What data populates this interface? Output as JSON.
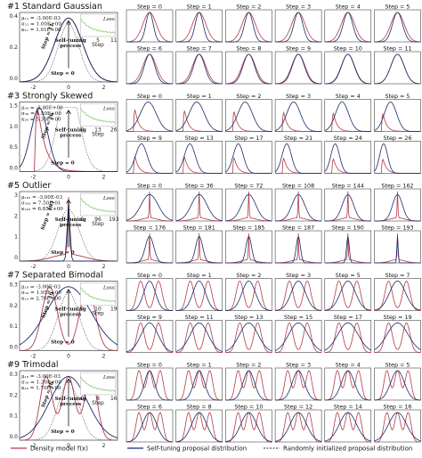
{
  "colors": {
    "density": "#b33b49",
    "selftuning": "#1b2a6b",
    "random": "#555555",
    "loss": "#8fd27a"
  },
  "legend": {
    "density": "Density model f(x)",
    "selftuning": "Self-tuning proposal distribution",
    "random": "Randomly initialized proposal distribution"
  },
  "chart_data": [
    {
      "type": "line",
      "title": "#1 Standard Gaussian",
      "mode": "gauss",
      "xticks": [
        "-2",
        "0",
        "2"
      ],
      "yticks": [
        "0.4",
        "0.2",
        "0.0"
      ],
      "loss_label": "Loss",
      "loss_xticks": [
        "0",
        "5",
        "11"
      ],
      "loss_xlabel": "Step",
      "stats": [
        "μ₁₁ = -3.00E-03",
        "σ₁₁ = 1.00E+00",
        "κ₁₁ = 1.01E+00"
      ],
      "step_start": "Step = 0",
      "step_end": "Step = 11",
      "process": [
        "Self-tuning",
        "process"
      ],
      "panels": [
        [
          "Step = 0",
          "Step = 1",
          "Step = 2",
          "Step = 3",
          "Step = 4",
          "Step = 5"
        ],
        [
          "Step = 6",
          "Step = 7",
          "Step = 8",
          "Step = 9",
          "Step = 10",
          "Step = 11"
        ]
      ]
    },
    {
      "type": "line",
      "title": "#3 Strongly Skewed",
      "mode": "skew",
      "xticks": [
        "-2",
        "0",
        "2"
      ],
      "yticks": [
        "1.5",
        "1.0",
        "0.5",
        "0.0"
      ],
      "loss_label": "Loss",
      "loss_xticks": [
        "0",
        "13",
        "26"
      ],
      "loss_xlabel": "Step",
      "stats": [
        "μ₂₆ = -2.80E+00",
        "σ₂₆ = 1.50E+00",
        "κ₂₆ = 5.30E+00"
      ],
      "step_start": "Step = 0",
      "step_end": "Step = 26",
      "process": [
        "Self-tuning",
        "process"
      ],
      "panels": [
        [
          "Step = 0",
          "Step = 1",
          "Step = 2",
          "Step = 3",
          "Step = 4",
          "Step = 5"
        ],
        [
          "Step = 9",
          "Step = 13",
          "Step = 17",
          "Step = 21",
          "Step = 24",
          "Step = 26"
        ]
      ]
    },
    {
      "type": "line",
      "title": "#5 Outlier",
      "mode": "outlier",
      "xticks": [
        "-2",
        "0",
        "2"
      ],
      "yticks": [
        "3",
        "2",
        "1",
        "0"
      ],
      "loss_label": "Loss",
      "loss_xticks": [
        "0",
        "96",
        "193"
      ],
      "loss_xlabel": "Step",
      "stats": [
        "μ₁₉₃ = -3.00E-03",
        "σ₁₉₃ = 7.50E-01",
        "κ₁₉₃ = 6.85E+00"
      ],
      "step_start": "Step = 0",
      "step_end": "Step = 193",
      "process": [
        "Self-tuning",
        "process"
      ],
      "panels": [
        [
          "Step = 0",
          "Step = 36",
          "Step = 72",
          "Step = 108",
          "Step = 144",
          "Step = 162"
        ],
        [
          "Step = 176",
          "Step = 181",
          "Step = 185",
          "Step = 187",
          "Step = 190",
          "Step = 193"
        ]
      ]
    },
    {
      "type": "line",
      "title": "#7 Separated Bimodal",
      "mode": "bimodal",
      "xticks": [
        "-2",
        "0",
        "2"
      ],
      "yticks": [
        "0.3",
        "0.2",
        "0.1",
        "0.0"
      ],
      "loss_label": "Loss",
      "loss_xticks": [
        "0",
        "10",
        "19"
      ],
      "loss_xlabel": "Step",
      "stats": [
        "μ₁₉ = -3.00E-03",
        "σ₁₉ = 1.95E+00",
        "κ₁₉ = 2.70E+00"
      ],
      "step_start": "Step = 0",
      "step_end": "Step = 19",
      "process": [
        "Self-tuning",
        "process"
      ],
      "panels": [
        [
          "Step = 0",
          "Step = 1",
          "Step = 2",
          "Step = 3",
          "Step = 5",
          "Step = 7"
        ],
        [
          "Step = 9",
          "Step = 11",
          "Step = 13",
          "Step = 15",
          "Step = 17",
          "Step = 19"
        ]
      ]
    },
    {
      "type": "line",
      "title": "#9 Trimodal",
      "mode": "trimodal",
      "xticks": [
        "-2",
        "0",
        "2"
      ],
      "yticks": [
        "0.3",
        "0.2",
        "0.1",
        "0.0"
      ],
      "loss_label": "Loss",
      "loss_xticks": [
        "0",
        "8",
        "16"
      ],
      "loss_xlabel": "Step",
      "stats": [
        "μ₁₆ = -3.00E-03",
        "σ₁₆ = 1.30E+00",
        "κ₁₆ = 1.70E+00"
      ],
      "step_start": "Step = 0",
      "step_end": "Step = 16",
      "process": [
        "Self-tuning",
        "process"
      ],
      "panels": [
        [
          "Step = 0",
          "Step = 1",
          "Step = 2",
          "Step = 3",
          "Step = 4",
          "Step = 5"
        ],
        [
          "Step = 6",
          "Step = 8",
          "Step = 10",
          "Step = 12",
          "Step = 14",
          "Step = 16"
        ]
      ]
    }
  ]
}
